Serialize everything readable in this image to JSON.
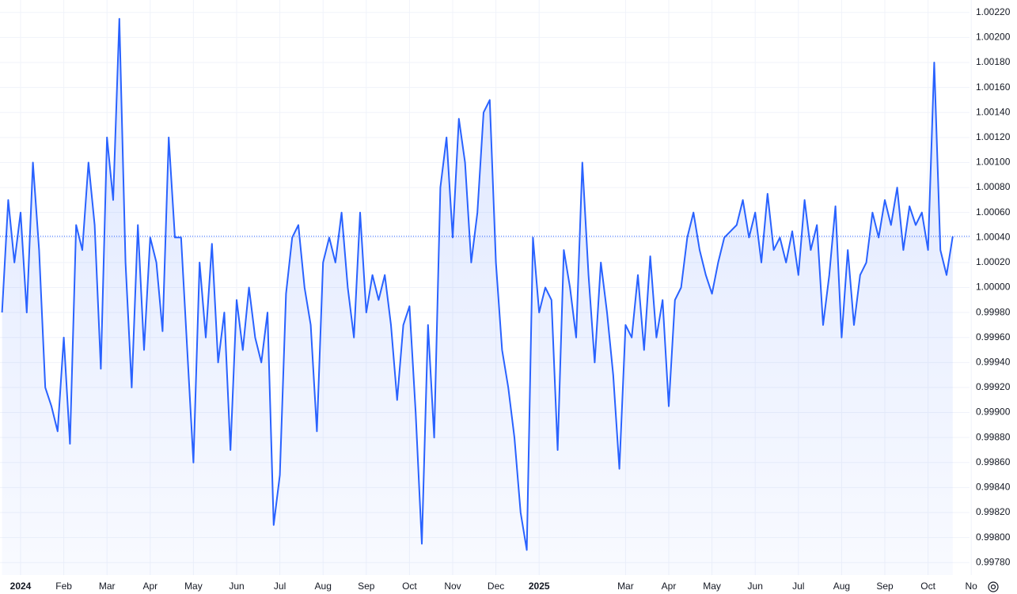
{
  "chart_data": {
    "type": "area",
    "color": "#2962ff",
    "grid": true,
    "last_value_line": true,
    "categories": [
      null,
      null,
      null,
      "2024",
      null,
      null,
      null,
      null,
      null,
      null,
      "Feb",
      null,
      null,
      null,
      null,
      null,
      null,
      "Mar",
      null,
      null,
      null,
      null,
      null,
      null,
      "Apr",
      null,
      null,
      null,
      null,
      null,
      null,
      "May",
      null,
      null,
      null,
      null,
      null,
      null,
      "Jun",
      null,
      null,
      null,
      null,
      null,
      null,
      "Jul",
      null,
      null,
      null,
      null,
      null,
      null,
      "Aug",
      null,
      null,
      null,
      null,
      null,
      null,
      "Sep",
      null,
      null,
      null,
      null,
      null,
      null,
      "Oct",
      null,
      null,
      null,
      null,
      null,
      null,
      "Nov",
      null,
      null,
      null,
      null,
      null,
      null,
      "Dec",
      null,
      null,
      null,
      null,
      null,
      null,
      "2025",
      null,
      null,
      null,
      null,
      null,
      null,
      null,
      null,
      null,
      null,
      null,
      null,
      null,
      "Mar",
      null,
      null,
      null,
      null,
      null,
      null,
      "Apr",
      null,
      null,
      null,
      null,
      null,
      null,
      "May",
      null,
      null,
      null,
      null,
      null,
      null,
      "Jun",
      null,
      null,
      null,
      null,
      null,
      null,
      "Jul",
      null,
      null,
      null,
      null,
      null,
      null,
      "Aug",
      null,
      null,
      null,
      null,
      null,
      null,
      "Sep",
      null,
      null,
      null,
      null,
      null,
      null,
      "Oct",
      null,
      null,
      null,
      null,
      null,
      null,
      "No"
    ],
    "values": [
      0.9998,
      1.0007,
      1.0002,
      1.0006,
      0.9998,
      1.001,
      1.0003,
      0.9992,
      0.99905,
      0.99885,
      0.9996,
      0.99875,
      1.0005,
      1.0003,
      1.001,
      1.0005,
      0.99935,
      1.0012,
      1.0007,
      1.00215,
      1.0002,
      0.9992,
      1.0005,
      0.9995,
      1.0004,
      1.0002,
      0.99965,
      1.0012,
      1.0004,
      1.0004,
      0.9995,
      0.9986,
      1.0002,
      0.9996,
      1.00035,
      0.9994,
      0.9998,
      0.9987,
      0.9999,
      0.9995,
      1.0,
      0.9996,
      0.9994,
      0.9998,
      0.9981,
      0.9985,
      0.99995,
      1.0004,
      1.0005,
      1.0,
      0.9997,
      0.99885,
      1.0002,
      1.0004,
      1.0002,
      1.0006,
      1.0,
      0.9996,
      1.0006,
      0.9998,
      1.0001,
      0.9999,
      1.0001,
      0.9997,
      0.9991,
      0.9997,
      0.99985,
      0.999,
      0.99795,
      0.9997,
      0.9988,
      1.0008,
      1.0012,
      1.0004,
      1.00135,
      1.001,
      1.0002,
      1.0006,
      1.0014,
      1.0015,
      1.0002,
      0.9995,
      0.9992,
      0.9988,
      0.9982,
      0.9979,
      1.0004,
      0.9998,
      1.0,
      0.9999,
      0.9987,
      1.0003,
      1.0,
      0.9996,
      1.001,
      1.0001,
      0.9994,
      1.0002,
      0.9998,
      0.9993,
      0.99855,
      0.9997,
      0.9996,
      1.0001,
      0.9995,
      1.00025,
      0.9996,
      0.9999,
      0.99905,
      0.9999,
      1.0,
      1.0004,
      1.0006,
      1.0003,
      1.0001,
      0.99995,
      1.0002,
      1.0004,
      1.00045,
      1.0005,
      1.0007,
      1.0004,
      1.0006,
      1.0002,
      1.00075,
      1.0003,
      1.0004,
      1.0002,
      1.00045,
      1.0001,
      1.0007,
      1.0003,
      1.0005,
      0.9997,
      1.0001,
      1.00065,
      0.9996,
      1.0003,
      0.9997,
      1.0001,
      1.0002,
      1.0006,
      1.0004,
      1.0007,
      1.0005,
      1.0008,
      1.0003,
      1.00065,
      1.0005,
      1.0006,
      1.0003,
      1.0018,
      1.0003,
      1.0001,
      1.00041,
      null,
      null,
      null
    ],
    "ylim": [
      0.9977,
      1.0023
    ],
    "yticks": [
      {
        "value": 0.9978,
        "label": "0.99780"
      },
      {
        "value": 0.998,
        "label": "0.99800"
      },
      {
        "value": 0.9982,
        "label": "0.99820"
      },
      {
        "value": 0.9984,
        "label": "0.99840"
      },
      {
        "value": 0.9986,
        "label": "0.99860"
      },
      {
        "value": 0.9988,
        "label": "0.99880"
      },
      {
        "value": 0.999,
        "label": "0.99900"
      },
      {
        "value": 0.9992,
        "label": "0.99920"
      },
      {
        "value": 0.9994,
        "label": "0.99940"
      },
      {
        "value": 0.9996,
        "label": "0.99960"
      },
      {
        "value": 0.9998,
        "label": "0.99980"
      },
      {
        "value": 1,
        "label": "1.00000"
      },
      {
        "value": 1.0002,
        "label": "1.00020"
      },
      {
        "value": 1.0004,
        "label": "1.00040"
      },
      {
        "value": 1.0006,
        "label": "1.00060"
      },
      {
        "value": 1.0008,
        "label": "1.00080"
      },
      {
        "value": 1.001,
        "label": "1.00100"
      },
      {
        "value": 1.0012,
        "label": "1.00120"
      },
      {
        "value": 1.0014,
        "label": "1.00140"
      },
      {
        "value": 1.0016,
        "label": "1.00160"
      },
      {
        "value": 1.0018,
        "label": "1.00180"
      },
      {
        "value": 1.002,
        "label": "1.00200"
      },
      {
        "value": 1.0022,
        "label": "1.00220"
      }
    ]
  }
}
